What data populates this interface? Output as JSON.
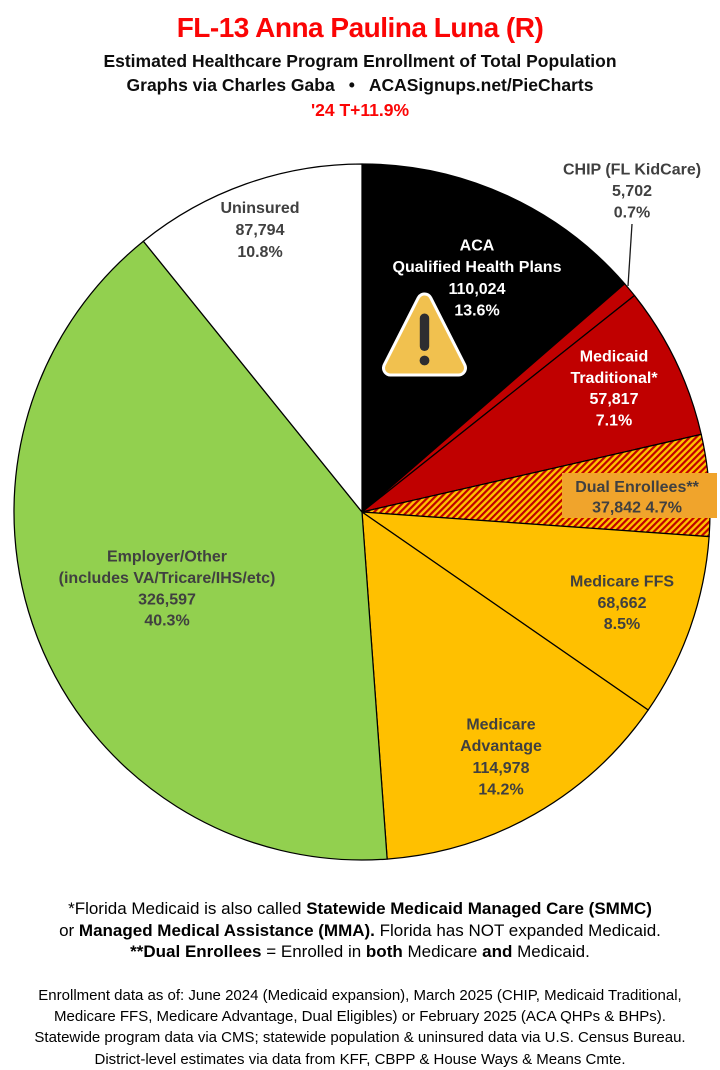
{
  "header": {
    "title": "FL-13 Anna Paulina Luna (R)",
    "title_color": "#FB0505",
    "subtitle": "Estimated Healthcare Program Enrollment of Total Population",
    "credit_left": "Graphs via Charles Gaba",
    "credit_bullet": "•",
    "credit_site": "ACASignups.net/PieCharts",
    "trend": "'24 T+11.9%",
    "trend_color": "#FB0505"
  },
  "chart_data": {
    "type": "pie",
    "title": "Estimated Healthcare Program Enrollment of Total Population",
    "direction": "clockwise",
    "start_angle": "12 o'clock",
    "total_pct_shown": 99.9,
    "slices": [
      {
        "id": "aca-qhp",
        "name": "ACA Qualified Health Plans",
        "label_lines": [
          "ACA",
          "Qualified Health Plans"
        ],
        "value": 110024,
        "value_text": "110,024",
        "pct": 13.6,
        "pct_text": "13.6%",
        "color": "#000000",
        "label_color": "#FFFFFF",
        "pattern": null
      },
      {
        "id": "chip",
        "name": "CHIP (FL KidCare)",
        "label_lines": [
          "CHIP (FL KidCare)"
        ],
        "value": 5702,
        "value_text": "5,702",
        "pct": 0.7,
        "pct_text": "0.7%",
        "color": "#C00000",
        "label_color": "#404040",
        "pattern": null,
        "label_outside": true
      },
      {
        "id": "medicaid-traditional",
        "name": "Medicaid Traditional*",
        "label_lines": [
          "Medicaid",
          "Traditional*"
        ],
        "value": 57817,
        "value_text": "57,817",
        "pct": 7.1,
        "pct_text": "7.1%",
        "color": "#C00000",
        "label_color": "#FFFFFF",
        "pattern": null
      },
      {
        "id": "dual-enrollees",
        "name": "Dual Enrollees**",
        "label_lines": [
          "Dual Enrollees**"
        ],
        "value": 37842,
        "value_text": "37,842",
        "pct": 4.7,
        "pct_text": "4.7%",
        "color": "#FFC000",
        "hatch_color": "#C00000",
        "pattern": "red-diagonal-hatch",
        "label_color": "#404040",
        "label_bg": "#F0A42C"
      },
      {
        "id": "medicare-ffs",
        "name": "Medicare FFS",
        "label_lines": [
          "Medicare FFS"
        ],
        "value": 68662,
        "value_text": "68,662",
        "pct": 8.5,
        "pct_text": "8.5%",
        "color": "#FFC000",
        "label_color": "#404040",
        "pattern": null
      },
      {
        "id": "medicare-advantage",
        "name": "Medicare Advantage",
        "label_lines": [
          "Medicare",
          "Advantage"
        ],
        "value": 114978,
        "value_text": "114,978",
        "pct": 14.2,
        "pct_text": "14.2%",
        "color": "#FFC000",
        "label_color": "#404040",
        "pattern": null
      },
      {
        "id": "employer-other",
        "name": "Employer/Other (includes VA/Tricare/IHS/etc)",
        "label_lines": [
          "Employer/Other",
          "(includes VA/Tricare/IHS/etc)"
        ],
        "value": 326597,
        "value_text": "326,597",
        "pct": 40.3,
        "pct_text": "40.3%",
        "color": "#92D04F",
        "label_color": "#404040",
        "pattern": null
      },
      {
        "id": "uninsured",
        "name": "Uninsured",
        "label_lines": [
          "Uninsured"
        ],
        "value": 87794,
        "value_text": "87,794",
        "pct": 10.8,
        "pct_text": "10.8%",
        "color": "#FFFFFF",
        "label_color": "#404040",
        "pattern": null
      }
    ],
    "slice_border_color": "#000000",
    "warning_icon": {
      "name": "warning-triangle",
      "fill": "#F1C14F",
      "glyph_color": "#2D2D30",
      "outline_color": "#FFFFFF",
      "on_slice": "aca-qhp"
    }
  },
  "footnotes": {
    "medicaid_note": [
      [
        {
          "t": "*Florida Medicaid is also called ",
          "b": 0
        },
        {
          "t": "Statewide Medicaid Managed Care (SMMC)",
          "b": 1
        }
      ],
      [
        {
          "t": "or ",
          "b": 0
        },
        {
          "t": "Managed Medical Assistance (MMA).",
          "b": 1
        },
        {
          "t": " Florida has NOT expanded Medicaid.",
          "b": 0
        }
      ],
      [
        {
          "t": "**Dual Enrollees",
          "b": 1
        },
        {
          "t": " = Enrolled in ",
          "b": 0
        },
        {
          "t": "both",
          "b": 1
        },
        {
          "t": " Medicare ",
          "b": 0
        },
        {
          "t": "and",
          "b": 1
        },
        {
          "t": " Medicaid.",
          "b": 0
        }
      ]
    ],
    "source_note": [
      "Enrollment data as of: June 2024 (Medicaid expansion), March 2025 (CHIP, Medicaid Traditional,",
      "Medicare FFS, Medicare Advantage, Dual Eligibles) or February 2025 (ACA QHPs & BHPs).",
      "Statewide program data via CMS; statewide population & uninsured data via U.S. Census Bureau.",
      "District-level estimates via data from KFF, CBPP & House Ways & Means Cmte."
    ]
  }
}
